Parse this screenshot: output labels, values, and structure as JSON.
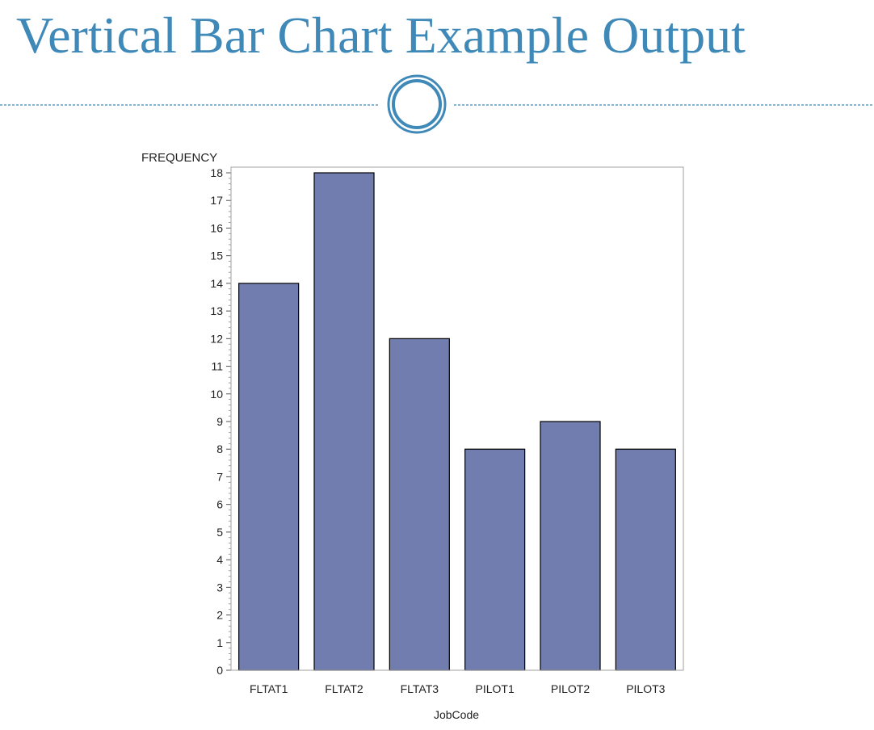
{
  "slide": {
    "title": "Vertical Bar Chart Example Output"
  },
  "colors": {
    "title": "#3f89b8",
    "bar_fill": "#717daf",
    "bar_stroke": "#000000",
    "frame": "#a0a0a0",
    "divider": "#3f89b8"
  },
  "chart_data": {
    "type": "bar",
    "orientation": "vertical",
    "title": "",
    "xlabel": "JobCode",
    "ylabel": "FREQUENCY",
    "categories": [
      "FLTAT1",
      "FLTAT2",
      "FLTAT3",
      "PILOT1",
      "PILOT2",
      "PILOT3"
    ],
    "values": [
      14,
      18,
      12,
      8,
      9,
      8
    ],
    "ylim": [
      0,
      18
    ],
    "yticks": [
      0,
      1,
      2,
      3,
      4,
      5,
      6,
      7,
      8,
      9,
      10,
      11,
      12,
      13,
      14,
      15,
      16,
      17,
      18
    ],
    "grid": false,
    "legend": "none"
  }
}
